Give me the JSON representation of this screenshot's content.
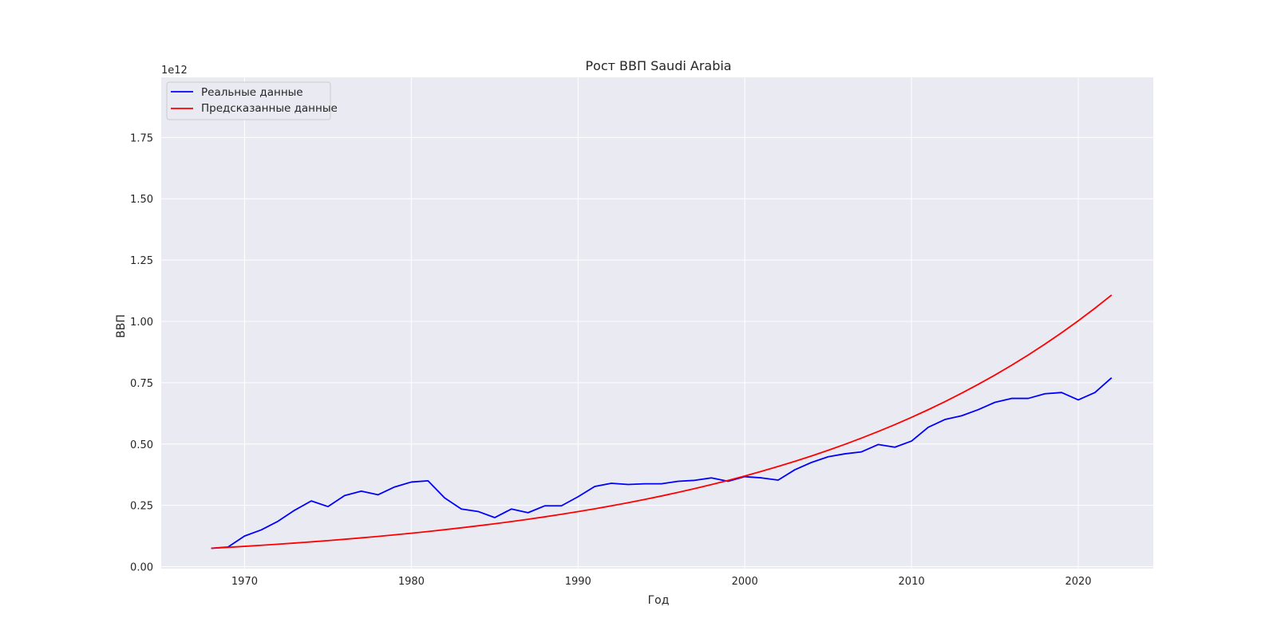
{
  "chart_data": {
    "type": "line",
    "title": "Рост ВВП Saudi Arabia",
    "xlabel": "Год",
    "ylabel": "ВВП",
    "y_offset_label": "1e12",
    "xlim": [
      1965.0,
      2024.5
    ],
    "ylim": [
      -0.008,
      1.995
    ],
    "x_ticks": [
      1970,
      1980,
      1990,
      2000,
      2010,
      2020
    ],
    "x_tick_labels": [
      "1970",
      "1980",
      "1990",
      "2000",
      "2010",
      "2020"
    ],
    "y_ticks": [
      0.0,
      0.25,
      0.5,
      0.75,
      1.0,
      1.25,
      1.5,
      1.75
    ],
    "y_tick_labels": [
      "0.00",
      "0.25",
      "0.50",
      "0.75",
      "1.00",
      "1.25",
      "1.50",
      "1.75"
    ],
    "grid": true,
    "legend_position": "top-left",
    "background": "#eaeaf2",
    "x": [
      1968,
      1969,
      1970,
      1971,
      1972,
      1973,
      1974,
      1975,
      1976,
      1977,
      1978,
      1979,
      1980,
      1981,
      1982,
      1983,
      1984,
      1985,
      1986,
      1987,
      1988,
      1989,
      1990,
      1991,
      1992,
      1993,
      1994,
      1995,
      1996,
      1997,
      1998,
      1999,
      2000,
      2001,
      2002,
      2003,
      2004,
      2005,
      2006,
      2007,
      2008,
      2009,
      2010,
      2011,
      2012,
      2013,
      2014,
      2015,
      2016,
      2017,
      2018,
      2019,
      2020,
      2021,
      2022
    ],
    "series": [
      {
        "name": "Реальные данные",
        "color": "#0000ff",
        "values": [
          0.075,
          0.08,
          0.125,
          0.15,
          0.185,
          0.23,
          0.268,
          0.245,
          0.29,
          0.308,
          0.293,
          0.325,
          0.345,
          0.35,
          0.28,
          0.235,
          0.225,
          0.2,
          0.235,
          0.22,
          0.248,
          0.248,
          0.285,
          0.327,
          0.34,
          0.335,
          0.338,
          0.338,
          0.348,
          0.352,
          0.362,
          0.348,
          0.367,
          0.362,
          0.353,
          0.395,
          0.425,
          0.448,
          0.46,
          0.468,
          0.498,
          0.487,
          0.512,
          0.568,
          0.6,
          0.615,
          0.64,
          0.67,
          0.686,
          0.686,
          0.705,
          0.71,
          0.68,
          0.71,
          0.77
        ]
      },
      {
        "name": "Предсказанные данные",
        "color": "#ff0000",
        "values": [
          0.075,
          0.0788,
          0.0828,
          0.0871,
          0.0915,
          0.0962,
          0.1011,
          0.1063,
          0.1117,
          0.1174,
          0.1234,
          0.1297,
          0.1364,
          0.1433,
          0.1507,
          0.1584,
          0.1665,
          0.175,
          0.1839,
          0.1933,
          0.2032,
          0.2136,
          0.2245,
          0.236,
          0.2481,
          0.2608,
          0.2741,
          0.2881,
          0.3028,
          0.3183,
          0.3346,
          0.3517,
          0.3697,
          0.3886,
          0.4085,
          0.4294,
          0.4513,
          0.4744,
          0.4987,
          0.5242,
          0.551,
          0.5792,
          0.6088,
          0.6399,
          0.6726,
          0.707,
          0.7432,
          0.7812,
          0.8211,
          0.8631,
          0.9073,
          0.9537,
          1.0025,
          1.0537,
          1.1076
        ]
      }
    ]
  }
}
